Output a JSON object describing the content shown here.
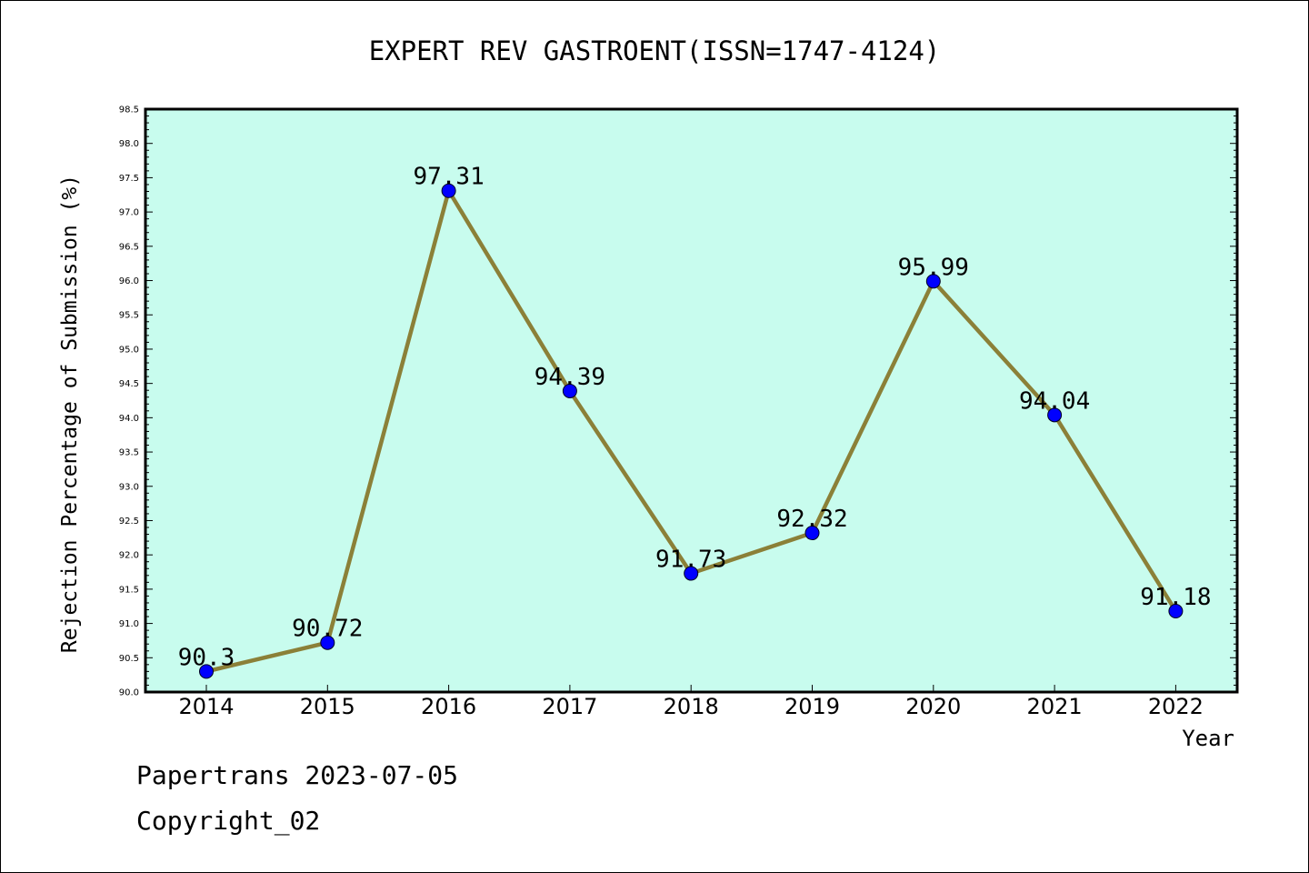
{
  "chart_data": {
    "type": "line",
    "title": "EXPERT REV GASTROENT(ISSN=1747-4124)",
    "xlabel": "Year",
    "ylabel": "Rejection Percentage of Submission (%)",
    "categories": [
      "2014",
      "2015",
      "2016",
      "2017",
      "2018",
      "2019",
      "2020",
      "2021",
      "2022"
    ],
    "values": [
      90.3,
      90.72,
      97.31,
      94.39,
      91.73,
      92.32,
      95.99,
      94.04,
      91.18
    ],
    "data_labels": [
      "90.3",
      "90.72",
      "97.31",
      "94.39",
      "91.73",
      "92.32",
      "95.99",
      "94.04",
      "91.18"
    ],
    "ylim": [
      90.0,
      98.5
    ],
    "yticks": [
      "90.0",
      "90.5",
      "91.0",
      "91.5",
      "92.0",
      "92.5",
      "93.0",
      "93.5",
      "94.0",
      "94.5",
      "95.0",
      "95.5",
      "96.0",
      "96.5",
      "97.0",
      "97.5",
      "98.0",
      "98.5"
    ],
    "grid": false,
    "colors": {
      "plot_background": "#c8fcee",
      "line": "#8b8038",
      "marker": "#0000ff"
    }
  },
  "footer": {
    "line1": "Papertrans 2023-07-05",
    "line2": "Copyright_02"
  }
}
